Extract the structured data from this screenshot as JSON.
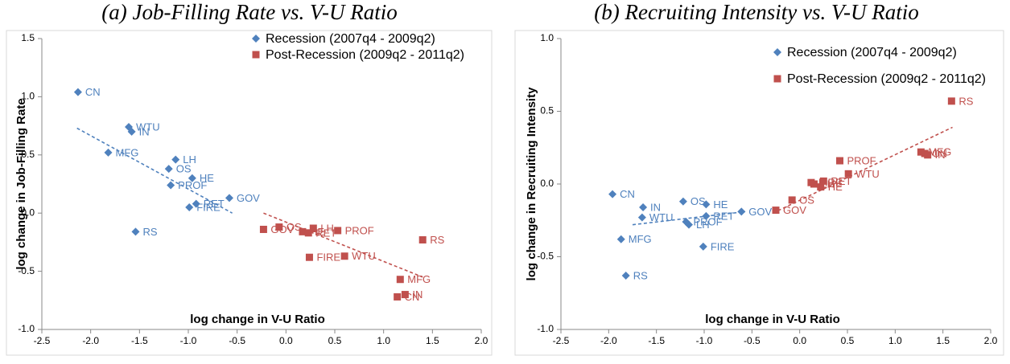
{
  "chart_data": [
    {
      "type": "scatter",
      "title": "(a) Job-Filling Rate vs. V-U Ratio",
      "x_label": "log change in V-U Ratio",
      "y_label": "log change in Job-Filling Rate",
      "xlim": [
        -2.5,
        2.0
      ],
      "xticks": [
        -2.5,
        {
          "value": -2.0,
          "label": "-2.0"
        },
        -1.5,
        {
          "value": -1.0,
          "label": "-1.0"
        },
        -0.5,
        {
          "value": 0.0,
          "label": "0.0"
        },
        0.5,
        {
          "value": 1.0,
          "label": "1.0"
        },
        1.5,
        {
          "value": 2.0,
          "label": "2.0"
        }
      ],
      "ylim": [
        -1.0,
        1.5
      ],
      "yticks": [
        {
          "value": -1.0,
          "label": "-1.0"
        },
        -0.5,
        {
          "value": 0.0,
          "label": "0.0"
        },
        0.5,
        {
          "value": 1.0,
          "label": "1.0"
        },
        1.5
      ],
      "legend": "upper right",
      "series": [
        {
          "name": "Recession (2007q4 - 2009q2)",
          "color": "#4f81bd",
          "marker": "diamond",
          "labels": [
            "CN",
            "WTU",
            "IN",
            "MFG",
            "LH",
            "OS",
            "HE",
            "PROF",
            "RET",
            "FIRE",
            "GOV",
            "RS"
          ],
          "x": [
            -2.13,
            -1.61,
            -1.58,
            -1.82,
            -1.13,
            -1.2,
            -0.96,
            -1.18,
            -0.92,
            -0.99,
            -0.58,
            -1.54
          ],
          "values": [
            1.04,
            0.74,
            0.7,
            0.52,
            0.46,
            0.38,
            0.3,
            0.24,
            0.08,
            0.05,
            0.13,
            -0.16
          ],
          "trend": {
            "x": [
              -2.14,
              -0.55
            ],
            "y": [
              0.73,
              0.0
            ]
          }
        },
        {
          "name": "Post-Recession (2009q2 - 2011q2)",
          "color": "#c0504d",
          "marker": "square",
          "labels": [
            "GOV",
            "OS",
            "HE",
            "RET",
            "LH",
            "PROF",
            "FIRE",
            "WTU",
            "MFG",
            "IN",
            "CN",
            "RS"
          ],
          "x": [
            -0.23,
            -0.07,
            0.17,
            0.23,
            0.28,
            0.53,
            0.24,
            0.6,
            1.17,
            1.22,
            1.14,
            1.4
          ],
          "values": [
            -0.14,
            -0.12,
            -0.16,
            -0.17,
            -0.13,
            -0.15,
            -0.38,
            -0.37,
            -0.57,
            -0.7,
            -0.72,
            -0.23
          ],
          "trend": {
            "x": [
              -0.23,
              1.4
            ],
            "y": [
              0.0,
              -0.55
            ]
          }
        }
      ]
    },
    {
      "type": "scatter",
      "title": "(b) Recruiting Intensity vs. V-U Ratio",
      "x_label": "log change in V-U Ratio",
      "y_label": "log change in Recruiting Intensity",
      "xlim": [
        -2.5,
        2.0
      ],
      "xticks": [
        -2.5,
        {
          "value": -2.0,
          "label": "-2.0"
        },
        -1.5,
        {
          "value": -1.0,
          "label": "-1.0"
        },
        -0.5,
        {
          "value": 0.0,
          "label": "0.0"
        },
        0.5,
        {
          "value": 1.0,
          "label": "1.0"
        },
        1.5,
        {
          "value": 2.0,
          "label": "2.0"
        }
      ],
      "ylim": [
        -1.0,
        1.0
      ],
      "yticks": [
        {
          "value": -1.0,
          "label": "-1.0"
        },
        -0.5,
        {
          "value": 0.0,
          "label": "0.0"
        },
        0.5,
        {
          "value": 1.0,
          "label": "1.0"
        }
      ],
      "legend": "upper right",
      "series": [
        {
          "name": "Recession (2007q4 - 2009q2)",
          "color": "#4f81bd",
          "marker": "diamond",
          "labels": [
            "CN",
            "IN",
            "WTU",
            "MFG",
            "OS",
            "HE",
            "RET",
            "PROF",
            "LH",
            "GOV",
            "FIRE",
            "RS"
          ],
          "x": [
            -1.96,
            -1.64,
            -1.65,
            -1.87,
            -1.22,
            -0.98,
            -0.98,
            -1.19,
            -1.16,
            -0.61,
            -1.01,
            -1.82
          ],
          "values": [
            -0.07,
            -0.16,
            -0.23,
            -0.38,
            -0.12,
            -0.14,
            -0.22,
            -0.26,
            -0.28,
            -0.19,
            -0.43,
            -0.63
          ],
          "trend": {
            "x": [
              -1.75,
              -0.57
            ],
            "y": [
              -0.28,
              -0.19
            ]
          }
        },
        {
          "name": "Post-Recession (2009q2 - 2011q2)",
          "color": "#c0504d",
          "marker": "square",
          "labels": [
            "GOV",
            "OS",
            "HE",
            "LH",
            "FIRE",
            "RET",
            "PROF",
            "WTU",
            "MFG",
            "CN",
            "IN",
            "RS"
          ],
          "x": [
            -0.25,
            -0.08,
            0.22,
            0.15,
            0.12,
            0.25,
            0.42,
            0.51,
            1.27,
            1.31,
            1.34,
            1.59
          ],
          "values": [
            -0.18,
            -0.11,
            -0.02,
            0.0,
            0.01,
            0.02,
            0.16,
            0.07,
            0.22,
            0.21,
            0.2,
            0.57
          ],
          "trend": {
            "x": [
              -0.28,
              1.6
            ],
            "y": [
              -0.2,
              0.39
            ]
          }
        }
      ]
    }
  ]
}
